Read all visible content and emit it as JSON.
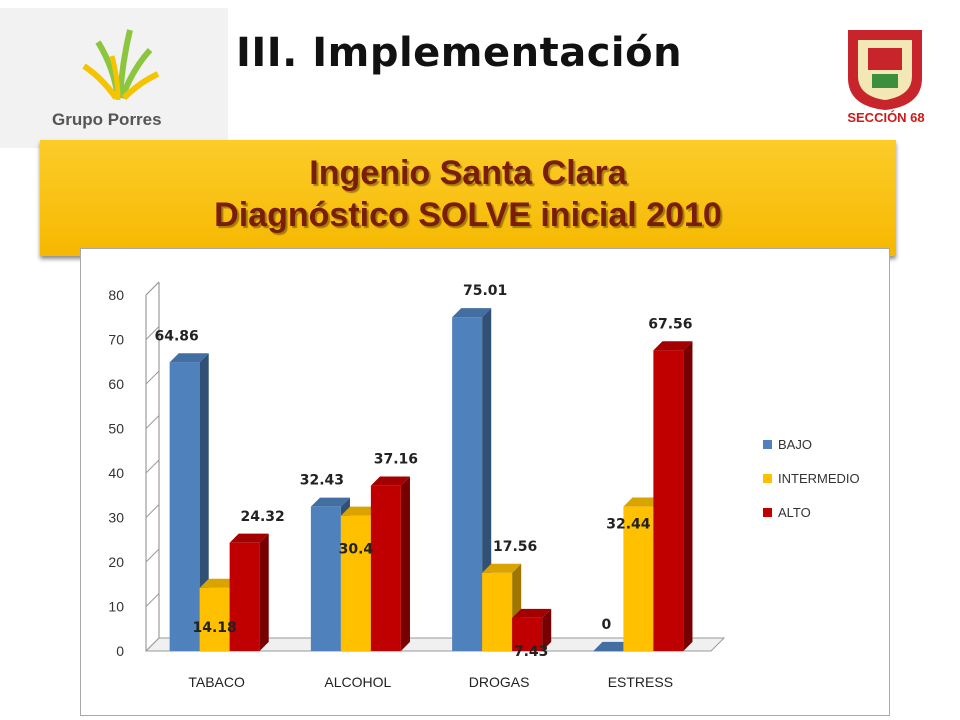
{
  "header": {
    "title": "III. Implementación",
    "logo_left_text": "Grupo Porres",
    "logo_right_text": "SECCIÓN 68"
  },
  "banner": {
    "line1": "Ingenio Santa Clara",
    "line2": "Diagnóstico SOLVE  inicial 2010"
  },
  "chart_data": {
    "type": "bar",
    "categories": [
      "TABACO",
      "ALCOHOL",
      "DROGAS",
      "ESTRESS"
    ],
    "series": [
      {
        "name": "BAJO",
        "values": [
          64.86,
          32.43,
          75.01,
          0
        ],
        "color": "#4f81bd",
        "labels": [
          "64.86",
          "32.43",
          "75.01",
          "0"
        ]
      },
      {
        "name": "INTERMEDIO",
        "values": [
          14.18,
          30.4,
          17.56,
          32.44
        ],
        "color": "#ffc000",
        "labels": [
          "14.18",
          "30.4",
          "17.56",
          "32.44"
        ]
      },
      {
        "name": "ALTO",
        "values": [
          24.32,
          37.16,
          7.43,
          67.56
        ],
        "color": "#c00000",
        "labels": [
          "24.32",
          "37.16",
          "7.43",
          "67.56"
        ]
      }
    ],
    "ylim": [
      0,
      80
    ],
    "yticks": [
      "0",
      "10",
      "20",
      "30",
      "40",
      "50",
      "60",
      "70",
      "80"
    ],
    "legend_position": "right",
    "grid": false
  }
}
